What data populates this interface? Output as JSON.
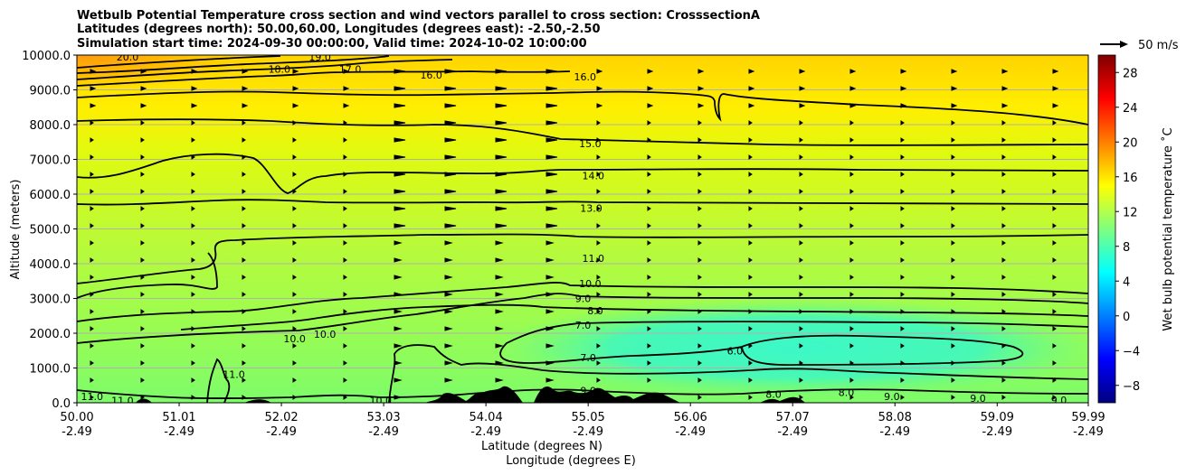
{
  "chart_data": {
    "type": "contour",
    "title_lines": [
      "Wetbulb Potential Temperature cross section and wind vectors parallel to cross section: CrosssectionA",
      "Latitudes (degrees north): 50.00,60.00, Longitudes (degrees east): -2.50,-2.50",
      "Simulation start time: 2024-09-30 00:00:00, Valid time: 2024-10-02 10:00:00"
    ],
    "ylabel": "Altitude (meters)",
    "xlabel_line1": "Latitude (degrees N)",
    "xlabel_line2": "Longitude (degrees E)",
    "x_ticks_lat": [
      "50.00",
      "51.01",
      "52.02",
      "53.03",
      "54.04",
      "55.05",
      "56.06",
      "57.07",
      "58.08",
      "59.09",
      "59.99"
    ],
    "x_ticks_lon": [
      "-2.49",
      "-2.49",
      "-2.49",
      "-2.49",
      "-2.49",
      "-2.49",
      "-2.49",
      "-2.49",
      "-2.49",
      "-2.49",
      "-2.49"
    ],
    "x_range": [
      50.0,
      59.99
    ],
    "y_ticks": [
      "0.0",
      "1000.0",
      "2000.0",
      "3000.0",
      "4000.0",
      "5000.0",
      "6000.0",
      "7000.0",
      "8000.0",
      "9000.0",
      "10000.0"
    ],
    "ylim": [
      0,
      10000
    ],
    "grid": "horizontal",
    "colorbar": {
      "label": "Wet bulb potential temperature ˚C",
      "ticks": [
        "−8",
        "−4",
        "0",
        "4",
        "8",
        "12",
        "16",
        "20",
        "24",
        "28"
      ],
      "range": [
        -10,
        30
      ],
      "colors": [
        "#00007f",
        "#0000ff",
        "#007fff",
        "#00ffff",
        "#7fff7f",
        "#ffff00",
        "#ff7f00",
        "#ff0000",
        "#7f0000"
      ]
    },
    "wind_key": {
      "label": "50 m/s"
    },
    "contour_labels": [
      {
        "t": "20.0",
        "x": 50.5,
        "y": 9950
      },
      {
        "t": "19.0",
        "x": 52.4,
        "y": 9950
      },
      {
        "t": "18.0",
        "x": 52.0,
        "y": 9600
      },
      {
        "t": "17.0",
        "x": 52.7,
        "y": 9600
      },
      {
        "t": "16.0",
        "x": 53.5,
        "y": 9430
      },
      {
        "t": "16.0",
        "x": 55.02,
        "y": 9380
      },
      {
        "t": "15.0",
        "x": 55.07,
        "y": 7450
      },
      {
        "t": "14.0",
        "x": 55.1,
        "y": 6530
      },
      {
        "t": "13.0",
        "x": 55.08,
        "y": 5600
      },
      {
        "t": "11.0",
        "x": 55.1,
        "y": 4150
      },
      {
        "t": "10.0",
        "x": 55.07,
        "y": 3430
      },
      {
        "t": "9.0",
        "x": 55.0,
        "y": 3000
      },
      {
        "t": "8.0",
        "x": 55.12,
        "y": 2650
      },
      {
        "t": "7.0",
        "x": 55.0,
        "y": 2230
      },
      {
        "t": "7.0",
        "x": 55.05,
        "y": 1300
      },
      {
        "t": "10.0",
        "x": 52.15,
        "y": 1850
      },
      {
        "t": "10.0",
        "x": 52.45,
        "y": 1980
      },
      {
        "t": "11.0",
        "x": 51.55,
        "y": 820
      },
      {
        "t": "6.0",
        "x": 56.5,
        "y": 1500
      },
      {
        "t": "11.0",
        "x": 50.15,
        "y": 180
      },
      {
        "t": "11.0",
        "x": 50.45,
        "y": 60
      },
      {
        "t": "10.0",
        "x": 53.0,
        "y": 60
      },
      {
        "t": "9.0",
        "x": 55.05,
        "y": 350
      },
      {
        "t": "8.0",
        "x": 56.88,
        "y": 250
      },
      {
        "t": "8.0",
        "x": 57.6,
        "y": 300
      },
      {
        "t": "9.0",
        "x": 58.05,
        "y": 180
      },
      {
        "t": "9.0",
        "x": 58.9,
        "y": 130
      },
      {
        "t": "9.0",
        "x": 59.7,
        "y": 80
      }
    ]
  }
}
